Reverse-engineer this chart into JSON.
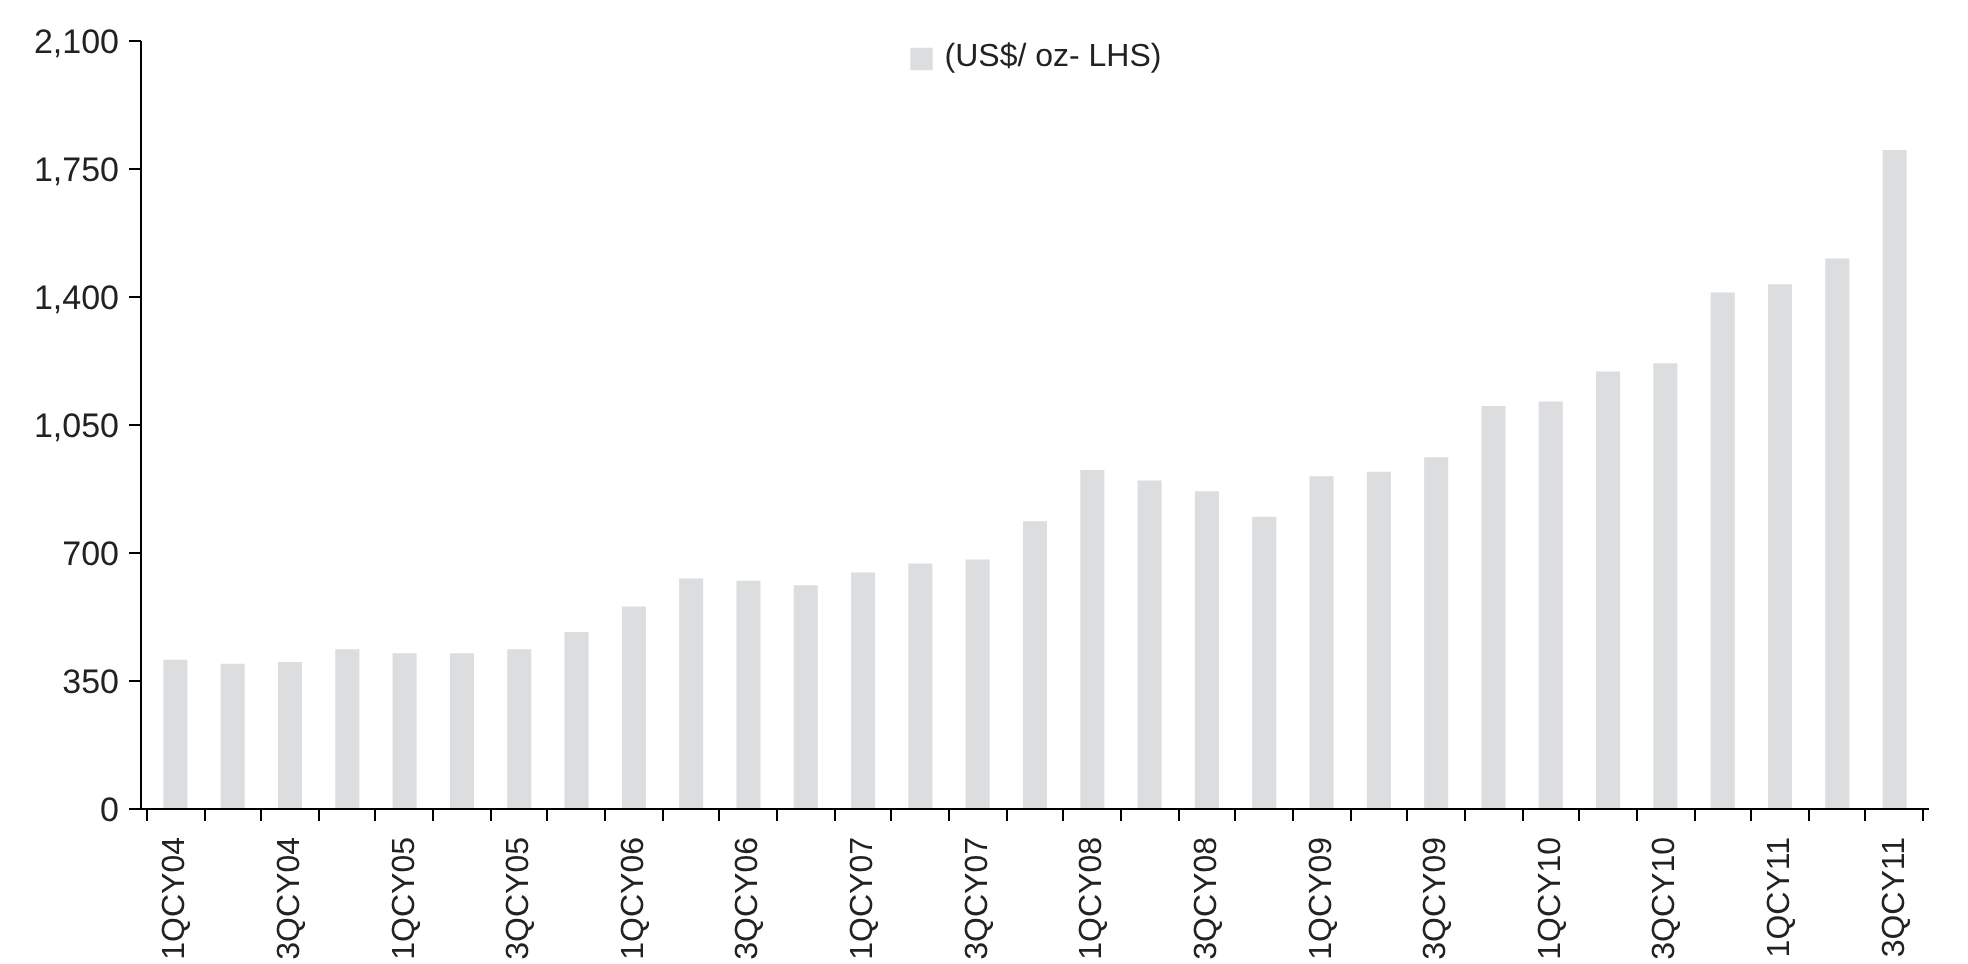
{
  "chart_data": {
    "type": "bar",
    "categories": [
      "1QCY04",
      null,
      "3QCY04",
      null,
      "1QCY05",
      null,
      "3QCY05",
      null,
      "1QCY06",
      null,
      "3QCY06",
      null,
      "1QCY07",
      null,
      "3QCY07",
      null,
      "1QCY08",
      null,
      "3QCY08",
      null,
      "1QCY09",
      null,
      "3QCY09",
      null,
      "1QCY10",
      null,
      "3QCY10",
      null,
      "1QCY11",
      null,
      "3QCY11"
    ],
    "series": [
      {
        "name": "(US$/ oz- LHS)",
        "color": "#dcdddf",
        "values": [
          408,
          397,
          402,
          437,
          426,
          426,
          437,
          484,
          554,
          630,
          624,
          612,
          647,
          671,
          682,
          787,
          927,
          898,
          869,
          799,
          910,
          922,
          962,
          1102,
          1114,
          1196,
          1219,
          1412,
          1435,
          1505,
          1802
        ]
      }
    ],
    "ylim": [
      0,
      2100
    ],
    "yticks": [
      0,
      {
        "value": 350,
        "label": "350"
      },
      {
        "value": 700,
        "label": "700"
      },
      {
        "value": 1050,
        "label": "1,050"
      },
      {
        "value": 1400,
        "label": "1,400"
      },
      {
        "value": 1750,
        "label": "1,750"
      },
      {
        "value": 2100,
        "label": "2,100"
      }
    ],
    "legend": "top",
    "grid": false
  }
}
